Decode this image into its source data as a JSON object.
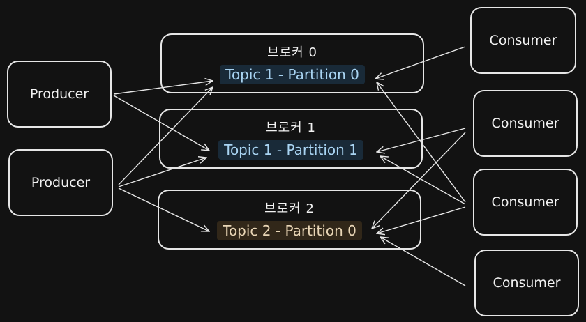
{
  "producers": [
    {
      "label": "Producer"
    },
    {
      "label": "Producer"
    }
  ],
  "brokers": [
    {
      "name": "브로커 0",
      "partition": "Topic 1 - Partition 0"
    },
    {
      "name": "브로커 1",
      "partition": "Topic 1 - Partition 1"
    },
    {
      "name": "브로커 2",
      "partition": "Topic 2 - Partition 0"
    }
  ],
  "consumers": [
    {
      "label": "Consumer"
    },
    {
      "label": "Consumer"
    },
    {
      "label": "Consumer"
    },
    {
      "label": "Consumer"
    }
  ],
  "colors": {
    "background": "#121212",
    "stroke": "#e6e6e6",
    "topic1_highlight": "#285a82",
    "topic2_highlight": "#6e5028"
  }
}
